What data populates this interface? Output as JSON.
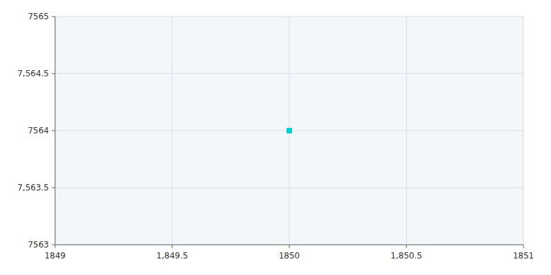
{
  "chart_data": {
    "type": "scatter",
    "x": [
      1850
    ],
    "values": [
      7564
    ],
    "color": "#00CED1",
    "marker": "square",
    "xlim": [
      1849,
      1851
    ],
    "ylim": [
      7563,
      7565
    ],
    "xticks": [
      1849,
      {
        "value": 1849.5,
        "label": "1,849.5"
      },
      1850,
      {
        "value": 1850.5,
        "label": "1,850.5"
      },
      1851
    ],
    "yticks": [
      7563,
      {
        "value": 7563.5,
        "label": "7,563.5"
      },
      7564,
      {
        "value": 7564.5,
        "label": "7,564.5"
      },
      7565
    ],
    "grid": true
  }
}
